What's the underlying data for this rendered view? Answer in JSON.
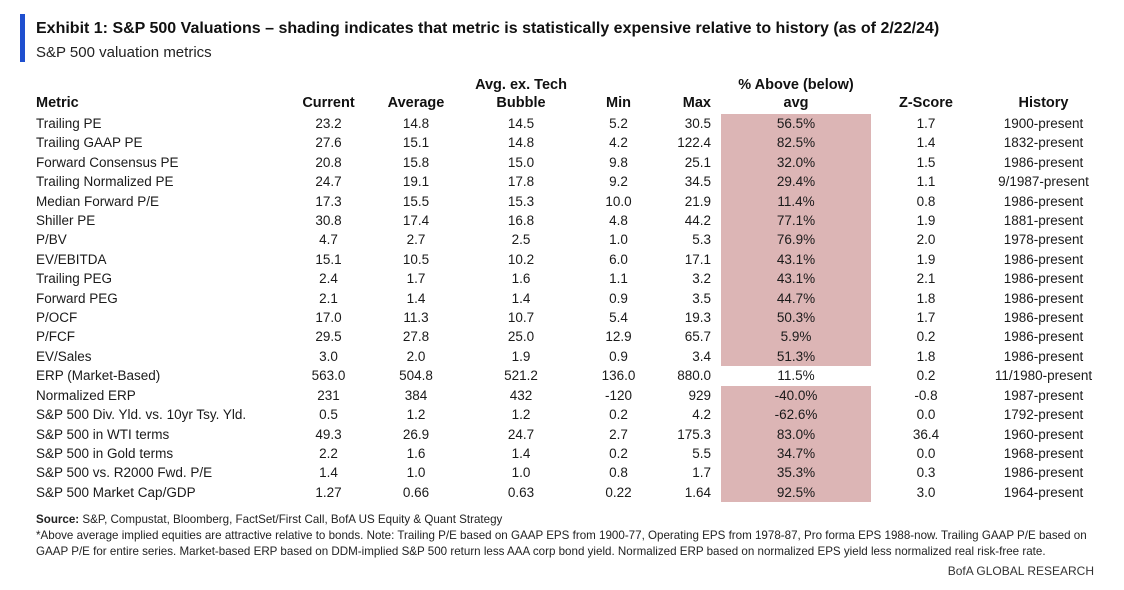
{
  "header": {
    "title": "Exhibit 1: S&P 500 Valuations – shading indicates that metric is statistically expensive relative to history (as of 2/22/24)",
    "subtitle": "S&P 500 valuation metrics"
  },
  "table": {
    "columns": {
      "metric": "Metric",
      "current": "Current",
      "average": "Average",
      "avg_ex_tech_line1": "Avg. ex. Tech",
      "avg_ex_tech_line2": "Bubble",
      "min": "Min",
      "max": "Max",
      "pct_line1": "% Above (below)",
      "pct_line2": "avg",
      "zscore": "Z-Score",
      "history": "History"
    },
    "shade_color": "#dcb5b5",
    "rows": [
      {
        "metric": "Trailing PE",
        "current": "23.2",
        "average": "14.8",
        "avg_ex_tech": "14.5",
        "min": "5.2",
        "max": "30.5",
        "pct": "56.5%",
        "zscore": "1.7",
        "history": "1900-present",
        "shaded": true
      },
      {
        "metric": "Trailing GAAP PE",
        "current": "27.6",
        "average": "15.1",
        "avg_ex_tech": "14.8",
        "min": "4.2",
        "max": "122.4",
        "pct": "82.5%",
        "zscore": "1.4",
        "history": "1832-present",
        "shaded": true
      },
      {
        "metric": "Forward Consensus PE",
        "current": "20.8",
        "average": "15.8",
        "avg_ex_tech": "15.0",
        "min": "9.8",
        "max": "25.1",
        "pct": "32.0%",
        "zscore": "1.5",
        "history": "1986-present",
        "shaded": true
      },
      {
        "metric": "Trailing Normalized PE",
        "current": "24.7",
        "average": "19.1",
        "avg_ex_tech": "17.8",
        "min": "9.2",
        "max": "34.5",
        "pct": "29.4%",
        "zscore": "1.1",
        "history": "9/1987-present",
        "shaded": true
      },
      {
        "metric": "Median Forward P/E",
        "current": "17.3",
        "average": "15.5",
        "avg_ex_tech": "15.3",
        "min": "10.0",
        "max": "21.9",
        "pct": "11.4%",
        "zscore": "0.8",
        "history": "1986-present",
        "shaded": true
      },
      {
        "metric": "Shiller PE",
        "current": "30.8",
        "average": "17.4",
        "avg_ex_tech": "16.8",
        "min": "4.8",
        "max": "44.2",
        "pct": "77.1%",
        "zscore": "1.9",
        "history": "1881-present",
        "shaded": true
      },
      {
        "metric": "P/BV",
        "current": "4.7",
        "average": "2.7",
        "avg_ex_tech": "2.5",
        "min": "1.0",
        "max": "5.3",
        "pct": "76.9%",
        "zscore": "2.0",
        "history": "1978-present",
        "shaded": true
      },
      {
        "metric": "EV/EBITDA",
        "current": "15.1",
        "average": "10.5",
        "avg_ex_tech": "10.2",
        "min": "6.0",
        "max": "17.1",
        "pct": "43.1%",
        "zscore": "1.9",
        "history": "1986-present",
        "shaded": true
      },
      {
        "metric": "Trailing PEG",
        "current": "2.4",
        "average": "1.7",
        "avg_ex_tech": "1.6",
        "min": "1.1",
        "max": "3.2",
        "pct": "43.1%",
        "zscore": "2.1",
        "history": "1986-present",
        "shaded": true
      },
      {
        "metric": "Forward PEG",
        "current": "2.1",
        "average": "1.4",
        "avg_ex_tech": "1.4",
        "min": "0.9",
        "max": "3.5",
        "pct": "44.7%",
        "zscore": "1.8",
        "history": "1986-present",
        "shaded": true
      },
      {
        "metric": "P/OCF",
        "current": "17.0",
        "average": "11.3",
        "avg_ex_tech": "10.7",
        "min": "5.4",
        "max": "19.3",
        "pct": "50.3%",
        "zscore": "1.7",
        "history": "1986-present",
        "shaded": true
      },
      {
        "metric": "P/FCF",
        "current": "29.5",
        "average": "27.8",
        "avg_ex_tech": "25.0",
        "min": "12.9",
        "max": "65.7",
        "pct": "5.9%",
        "zscore": "0.2",
        "history": "1986-present",
        "shaded": true
      },
      {
        "metric": "EV/Sales",
        "current": "3.0",
        "average": "2.0",
        "avg_ex_tech": "1.9",
        "min": "0.9",
        "max": "3.4",
        "pct": "51.3%",
        "zscore": "1.8",
        "history": "1986-present",
        "shaded": true
      },
      {
        "metric": "ERP (Market-Based)",
        "current": "563.0",
        "average": "504.8",
        "avg_ex_tech": "521.2",
        "min": "136.0",
        "max": "880.0",
        "pct": "11.5%",
        "zscore": "0.2",
        "history": "11/1980-present",
        "shaded": false
      },
      {
        "metric": "Normalized ERP",
        "current": "231",
        "average": "384",
        "avg_ex_tech": "432",
        "min": "-120",
        "max": "929",
        "pct": "-40.0%",
        "zscore": "-0.8",
        "history": "1987-present",
        "shaded": true
      },
      {
        "metric": "S&P 500 Div. Yld. vs. 10yr Tsy. Yld.",
        "current": "0.5",
        "average": "1.2",
        "avg_ex_tech": "1.2",
        "min": "0.2",
        "max": "4.2",
        "pct": "-62.6%",
        "zscore": "0.0",
        "history": "1792-present",
        "shaded": true
      },
      {
        "metric": "S&P 500 in WTI terms",
        "current": "49.3",
        "average": "26.9",
        "avg_ex_tech": "24.7",
        "min": "2.7",
        "max": "175.3",
        "pct": "83.0%",
        "zscore": "36.4",
        "history": "1960-present",
        "shaded": true
      },
      {
        "metric": "S&P 500 in Gold terms",
        "current": "2.2",
        "average": "1.6",
        "avg_ex_tech": "1.4",
        "min": "0.2",
        "max": "5.5",
        "pct": "34.7%",
        "zscore": "0.0",
        "history": "1968-present",
        "shaded": true
      },
      {
        "metric": "S&P 500 vs. R2000 Fwd. P/E",
        "current": "1.4",
        "average": "1.0",
        "avg_ex_tech": "1.0",
        "min": "0.8",
        "max": "1.7",
        "pct": "35.3%",
        "zscore": "0.3",
        "history": "1986-present",
        "shaded": true
      },
      {
        "metric": "S&P 500 Market Cap/GDP",
        "current": "1.27",
        "average": "0.66",
        "avg_ex_tech": "0.63",
        "min": "0.22",
        "max": "1.64",
        "pct": "92.5%",
        "zscore": "3.0",
        "history": "1964-present",
        "shaded": true
      }
    ]
  },
  "notes": {
    "source_label": "Source:",
    "source_text": " S&P, Compustat, Bloomberg, FactSet/First Call, BofA US Equity & Quant Strategy",
    "footnote": "*Above average implied equities are attractive relative to bonds.  Note: Trailing P/E based on GAAP EPS from 1900-77, Operating EPS from 1978-87, Pro forma EPS 1988-now. Trailing GAAP P/E based on GAAP P/E for entire series. Market-based ERP based on DDM-implied S&P 500 return less AAA corp bond yield. Normalized ERP based on normalized EPS yield less normalized real risk-free rate."
  },
  "footer": {
    "brand": "BofA GLOBAL RESEARCH"
  }
}
